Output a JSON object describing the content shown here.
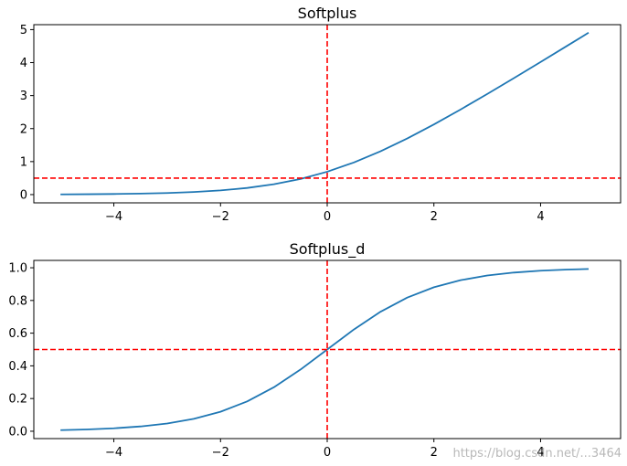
{
  "chart_data": [
    {
      "type": "line",
      "title": "Softplus",
      "xlim": [
        -5.5,
        5.5
      ],
      "ylim": [
        -0.25,
        5.15
      ],
      "xticks": [
        -4,
        -2,
        0,
        2,
        4
      ],
      "yticks": [
        0,
        1,
        2,
        3,
        4,
        5
      ],
      "xtick_labels": [
        "−4",
        "−2",
        "0",
        "2",
        "4"
      ],
      "ytick_labels": [
        "0",
        "1",
        "2",
        "3",
        "4",
        "5"
      ],
      "grid": false,
      "series": [
        {
          "color": "#1f77b4",
          "x": [
            -5,
            -4.5,
            -4,
            -3.5,
            -3,
            -2.5,
            -2,
            -1.5,
            -1,
            -0.5,
            0,
            0.5,
            1,
            1.5,
            2,
            2.5,
            3,
            3.5,
            4,
            4.5,
            4.9
          ],
          "y": [
            0.0067,
            0.011,
            0.0181,
            0.0298,
            0.0486,
            0.0789,
            0.1269,
            0.2014,
            0.3133,
            0.4741,
            0.6931,
            0.9741,
            1.3133,
            1.7014,
            2.1269,
            2.5789,
            3.0486,
            3.5298,
            4.0181,
            4.511,
            4.9074
          ]
        }
      ],
      "reference_lines": [
        {
          "orientation": "horizontal",
          "value": 0.5,
          "color": "#ff0000",
          "style": "dashed"
        },
        {
          "orientation": "vertical",
          "value": 0,
          "color": "#ff0000",
          "style": "dashed"
        }
      ]
    },
    {
      "type": "line",
      "title": "Softplus_d",
      "xlim": [
        -5.5,
        5.5
      ],
      "ylim": [
        -0.045,
        1.045
      ],
      "xticks": [
        -4,
        -2,
        0,
        2,
        4
      ],
      "yticks": [
        0,
        0.2,
        0.4,
        0.6,
        0.8,
        1.0
      ],
      "xtick_labels": [
        "−4",
        "−2",
        "0",
        "2",
        "4"
      ],
      "ytick_labels": [
        "0.0",
        "0.2",
        "0.4",
        "0.6",
        "0.8",
        "1.0"
      ],
      "grid": false,
      "series": [
        {
          "color": "#1f77b4",
          "x": [
            -5,
            -4.5,
            -4,
            -3.5,
            -3,
            -2.5,
            -2,
            -1.5,
            -1,
            -0.5,
            0,
            0.5,
            1,
            1.5,
            2,
            2.5,
            3,
            3.5,
            4,
            4.5,
            4.9
          ],
          "y": [
            0.0067,
            0.011,
            0.018,
            0.0293,
            0.0474,
            0.0759,
            0.1192,
            0.1824,
            0.2689,
            0.3775,
            0.5,
            0.6225,
            0.7311,
            0.8176,
            0.8808,
            0.9241,
            0.9526,
            0.9707,
            0.982,
            0.989,
            0.9926
          ]
        }
      ],
      "reference_lines": [
        {
          "orientation": "horizontal",
          "value": 0.5,
          "color": "#ff0000",
          "style": "dashed"
        },
        {
          "orientation": "vertical",
          "value": 0,
          "color": "#ff0000",
          "style": "dashed"
        }
      ]
    }
  ],
  "watermark": "https://blog.csdn.net/...3464"
}
